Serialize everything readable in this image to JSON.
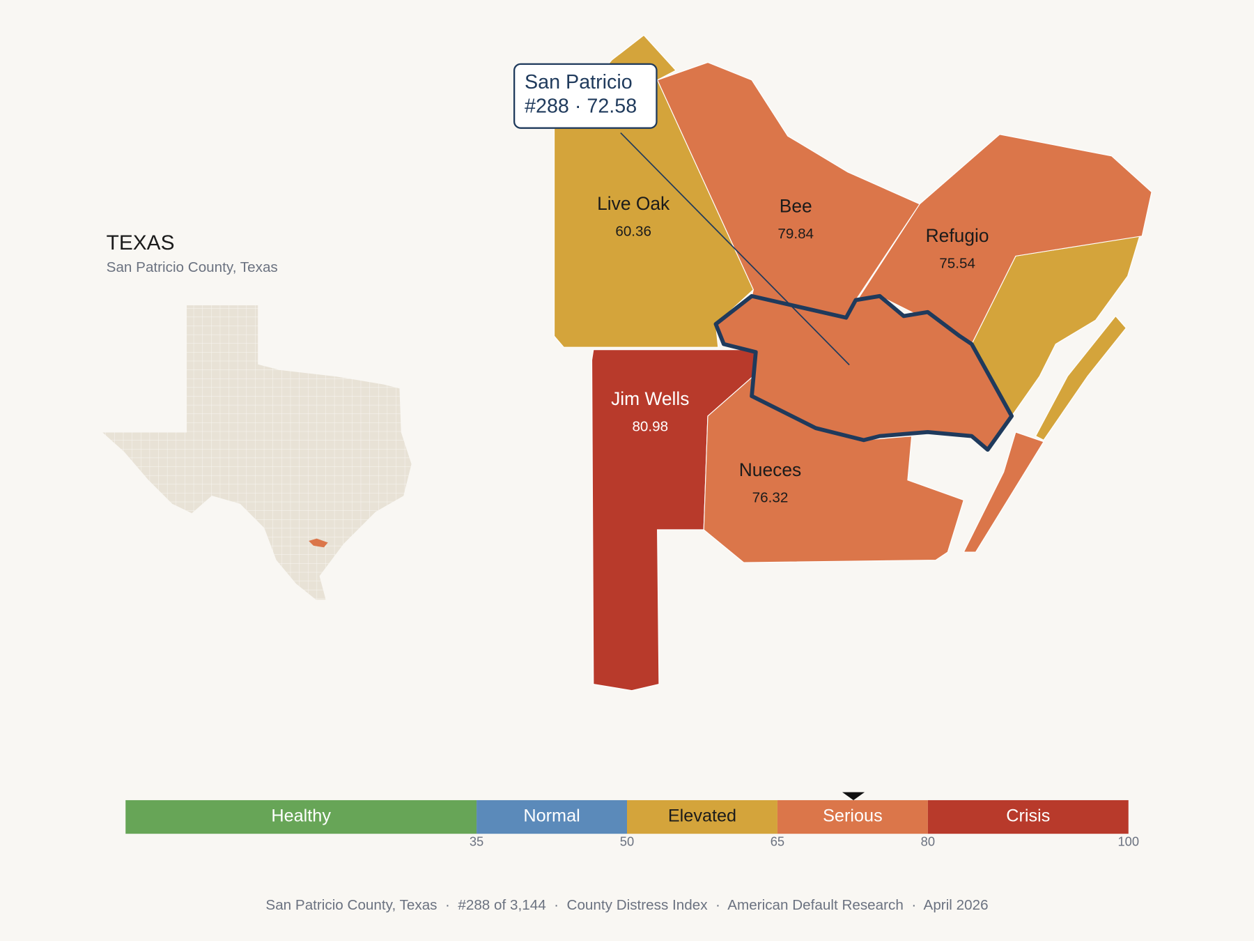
{
  "inset": {
    "title": "TEXAS",
    "subtitle": "San Patricio County, Texas"
  },
  "counties": [
    {
      "name": "Live Oak",
      "value": 60.36
    },
    {
      "name": "Bee",
      "value": 79.84
    },
    {
      "name": "Refugio",
      "value": 75.54
    },
    {
      "name": "Jim Wells",
      "value": 80.98
    },
    {
      "name": "Nueces",
      "value": 76.32
    }
  ],
  "callout": {
    "name": "San Patricio",
    "text": "#288 · 72.58",
    "value": 72.58
  },
  "legend": {
    "lim": [
      0,
      100
    ],
    "ticks": [
      35,
      50,
      65,
      80,
      100
    ],
    "bands": [
      {
        "name": "Healthy",
        "color": "#67a557"
      },
      {
        "name": "Normal",
        "color": "#5b8aba"
      },
      {
        "name": "Elevated",
        "color": "#d4a43b"
      },
      {
        "name": "Serious",
        "color": "#db764a"
      },
      {
        "name": "Crisis",
        "color": "#b83a2b"
      }
    ]
  },
  "footer": "San Patricio County, Texas  ·  #288 of 3,144  ·  County Distress Index  ·  American Default Research  ·  April 2026"
}
